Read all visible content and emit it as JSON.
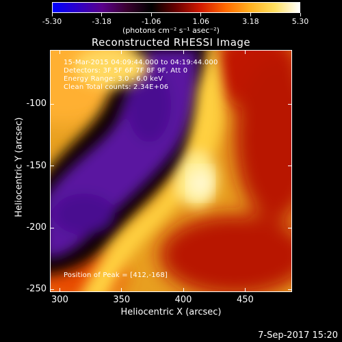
{
  "colorbar": {
    "ticks": [
      "-5.30",
      "-3.18",
      "-1.06",
      "1.06",
      "3.18",
      "5.30"
    ],
    "units": "(photons cm⁻² s⁻¹ asec⁻²)",
    "stops": [
      "#0000ff",
      "#2d00c8",
      "#5a008c",
      "#3a0030",
      "#000000",
      "#6a0000",
      "#d21a00",
      "#ff6a00",
      "#ffb020",
      "#ffe060",
      "#ffffff"
    ]
  },
  "title": "Reconstructed RHESSI Image",
  "info": {
    "time": "15-Mar-2015 04:09:44.000 to 04:19:44.000",
    "detectors": "Detectors: 3F 5F 6F 7F 8F 9F, Att 0",
    "energy": "Energy Range: 3.0 - 6.0 keV",
    "clean": "Clean     Total counts: 2.34E+06",
    "peak": "Position of Peak = [412,-168]"
  },
  "axes": {
    "xlabel": "Heliocentric X (arcsec)",
    "ylabel": "Heliocentric Y (arcsec)",
    "xticks": [
      "300",
      "350",
      "400",
      "450"
    ],
    "yticks": [
      "-100",
      "-150",
      "-200",
      "-250"
    ],
    "xrange": [
      292,
      488
    ],
    "yrange": [
      -252,
      -56
    ]
  },
  "footer": {
    "date": "7-Sep-2017 15:20"
  }
}
